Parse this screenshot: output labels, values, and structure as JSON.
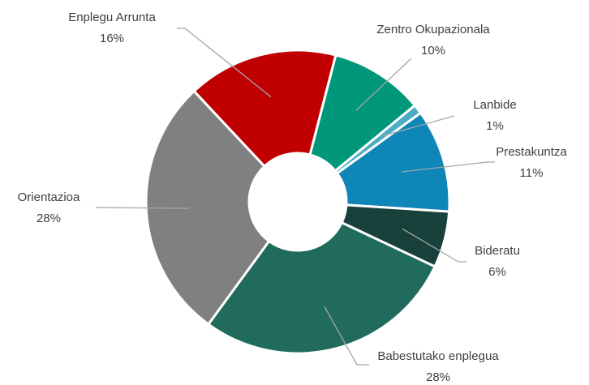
{
  "chart_data": {
    "type": "pie",
    "categories": [
      "Zentro Okupazionala",
      "Lanbide",
      "Prestakuntza",
      "Bideratu",
      "Babestutako enplegua",
      "Orientazioa",
      "Enplegu Arrunta"
    ],
    "values": [
      10,
      1,
      11,
      6,
      28,
      28,
      16
    ],
    "value_labels": [
      "10%",
      "1%",
      "11%",
      "6%",
      "28%",
      "28%",
      "16%"
    ],
    "colors": [
      "#00977a",
      "#4bacc6",
      "#0e86b7",
      "#17413a",
      "#206b5c",
      "#808080",
      "#c00000"
    ]
  }
}
